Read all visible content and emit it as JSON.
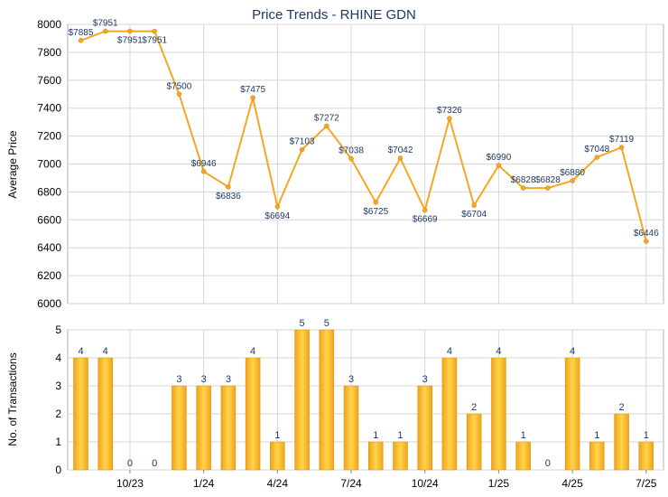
{
  "chart_data": [
    {
      "type": "line",
      "title": "Price Trends - RHINE GDN",
      "ylabel": "Average Price",
      "ylim": [
        6000,
        8000
      ],
      "yticks": [
        "6000",
        "6200",
        "6400",
        "6600",
        "6800",
        "7000",
        "7200",
        "7400",
        "7600",
        "7800",
        "8000"
      ],
      "color": "#f5a623",
      "grid": true,
      "points": [
        {
          "month": "2023-08",
          "value": 7885,
          "label": "$7885"
        },
        {
          "month": "2023-09",
          "value": 7951,
          "label": "$7951"
        },
        {
          "month": "2023-10",
          "value": 7951,
          "label": "$7951"
        },
        {
          "month": "2023-11",
          "value": 7951,
          "label": "$7951"
        },
        {
          "month": "2023-12",
          "value": 7500,
          "label": "$7500"
        },
        {
          "month": "2024-01",
          "value": 6946,
          "label": "$6946"
        },
        {
          "month": "2024-02",
          "value": 6836,
          "label": "$6836"
        },
        {
          "month": "2024-03",
          "value": 7475,
          "label": "$7475"
        },
        {
          "month": "2024-04",
          "value": 6694,
          "label": "$6694"
        },
        {
          "month": "2024-05",
          "value": 7103,
          "label": "$7103"
        },
        {
          "month": "2024-06",
          "value": 7272,
          "label": "$7272"
        },
        {
          "month": "2024-07",
          "value": 7038,
          "label": "$7038"
        },
        {
          "month": "2024-08",
          "value": 6725,
          "label": "$6725"
        },
        {
          "month": "2024-09",
          "value": 7042,
          "label": "$7042"
        },
        {
          "month": "2024-10",
          "value": 6669,
          "label": "$6669"
        },
        {
          "month": "2024-11",
          "value": 7326,
          "label": "$7326"
        },
        {
          "month": "2024-12",
          "value": 6704,
          "label": "$6704"
        },
        {
          "month": "2025-01",
          "value": 6990,
          "label": "$6990"
        },
        {
          "month": "2025-02",
          "value": 6828,
          "label": "$6828"
        },
        {
          "month": "2025-03",
          "value": 6828,
          "label": "$6828"
        },
        {
          "month": "2025-04",
          "value": 6880,
          "label": "$6880"
        },
        {
          "month": "2025-05",
          "value": 7048,
          "label": "$7048"
        },
        {
          "month": "2025-06",
          "value": 7119,
          "label": "$7119"
        },
        {
          "month": "2025-07",
          "value": 6446,
          "label": "$6446"
        }
      ]
    },
    {
      "type": "bar",
      "ylabel": "No. of Transactions",
      "ylim": [
        0,
        5
      ],
      "yticks": [
        "0",
        "1",
        "2",
        "3",
        "4",
        "5"
      ],
      "color": "#f5a623",
      "grid": true,
      "xtick_labels": [
        "10/23",
        "1/24",
        "4/24",
        "7/24",
        "10/24",
        "1/25",
        "4/25",
        "7/25"
      ],
      "categories": [
        "2023-08",
        "2023-09",
        "2023-10",
        "2023-11",
        "2023-12",
        "2024-01",
        "2024-02",
        "2024-03",
        "2024-04",
        "2024-05",
        "2024-06",
        "2024-07",
        "2024-08",
        "2024-09",
        "2024-10",
        "2024-11",
        "2024-12",
        "2025-01",
        "2025-02",
        "2025-03",
        "2025-04",
        "2025-05",
        "2025-06",
        "2025-07"
      ],
      "values": [
        4,
        4,
        0,
        0,
        3,
        3,
        3,
        4,
        1,
        5,
        5,
        3,
        1,
        1,
        3,
        4,
        2,
        4,
        1,
        0,
        4,
        1,
        2,
        1
      ],
      "labels": [
        "4",
        "4",
        "0",
        "0",
        "3",
        "3",
        "3",
        "4",
        "1",
        "5",
        "5",
        "3",
        "1",
        "1",
        "3",
        "4",
        "2",
        "4",
        "1",
        "0",
        "4",
        "1",
        "2",
        "1"
      ]
    }
  ]
}
